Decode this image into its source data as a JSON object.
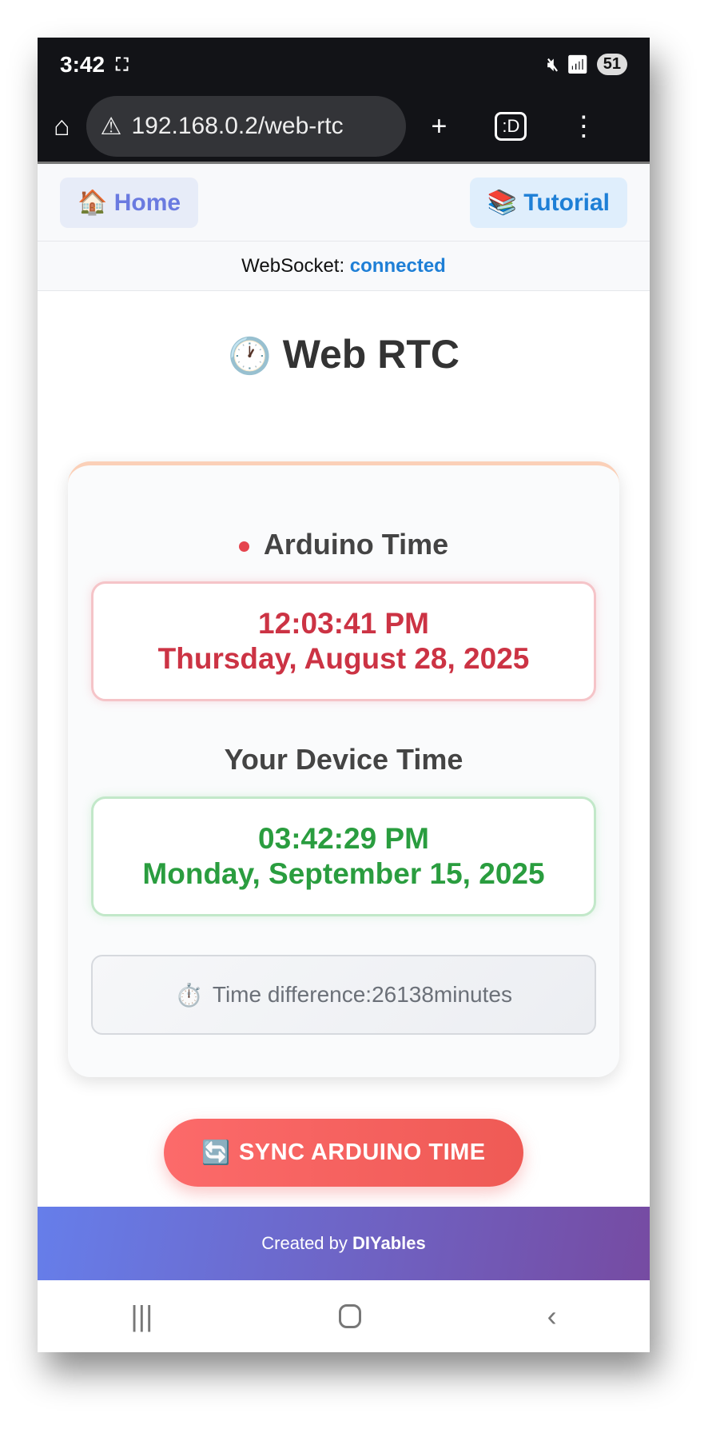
{
  "status_bar": {
    "time": "3:42",
    "battery": "51"
  },
  "browser": {
    "url": "192.168.0.2/web-rtc"
  },
  "nav": {
    "home_icon": "🏠",
    "home": "Home",
    "tutorial_icon": "📚",
    "tutorial": "Tutorial"
  },
  "websocket": {
    "label": "WebSocket:",
    "status": "connected"
  },
  "page": {
    "title_icon": "🕐",
    "title": "Web RTC"
  },
  "arduino": {
    "label": "Arduino Time",
    "time": "12:03:41 PM",
    "date": "Thursday, August 28, 2025"
  },
  "device": {
    "label": "Your Device Time",
    "time": "03:42:29 PM",
    "date": "Monday, September 15, 2025"
  },
  "difference": {
    "icon": "⏱️",
    "text": "Time difference:26138minutes"
  },
  "sync": {
    "icon": "🔄",
    "label": "SYNC ARDUINO TIME"
  },
  "footer": {
    "prefix": "Created by",
    "brand": "DIYables"
  },
  "colors": {
    "arduino": "#cc3344",
    "device": "#2a9d3f",
    "link": "#1e7fd6",
    "button": "#f25f5c"
  }
}
